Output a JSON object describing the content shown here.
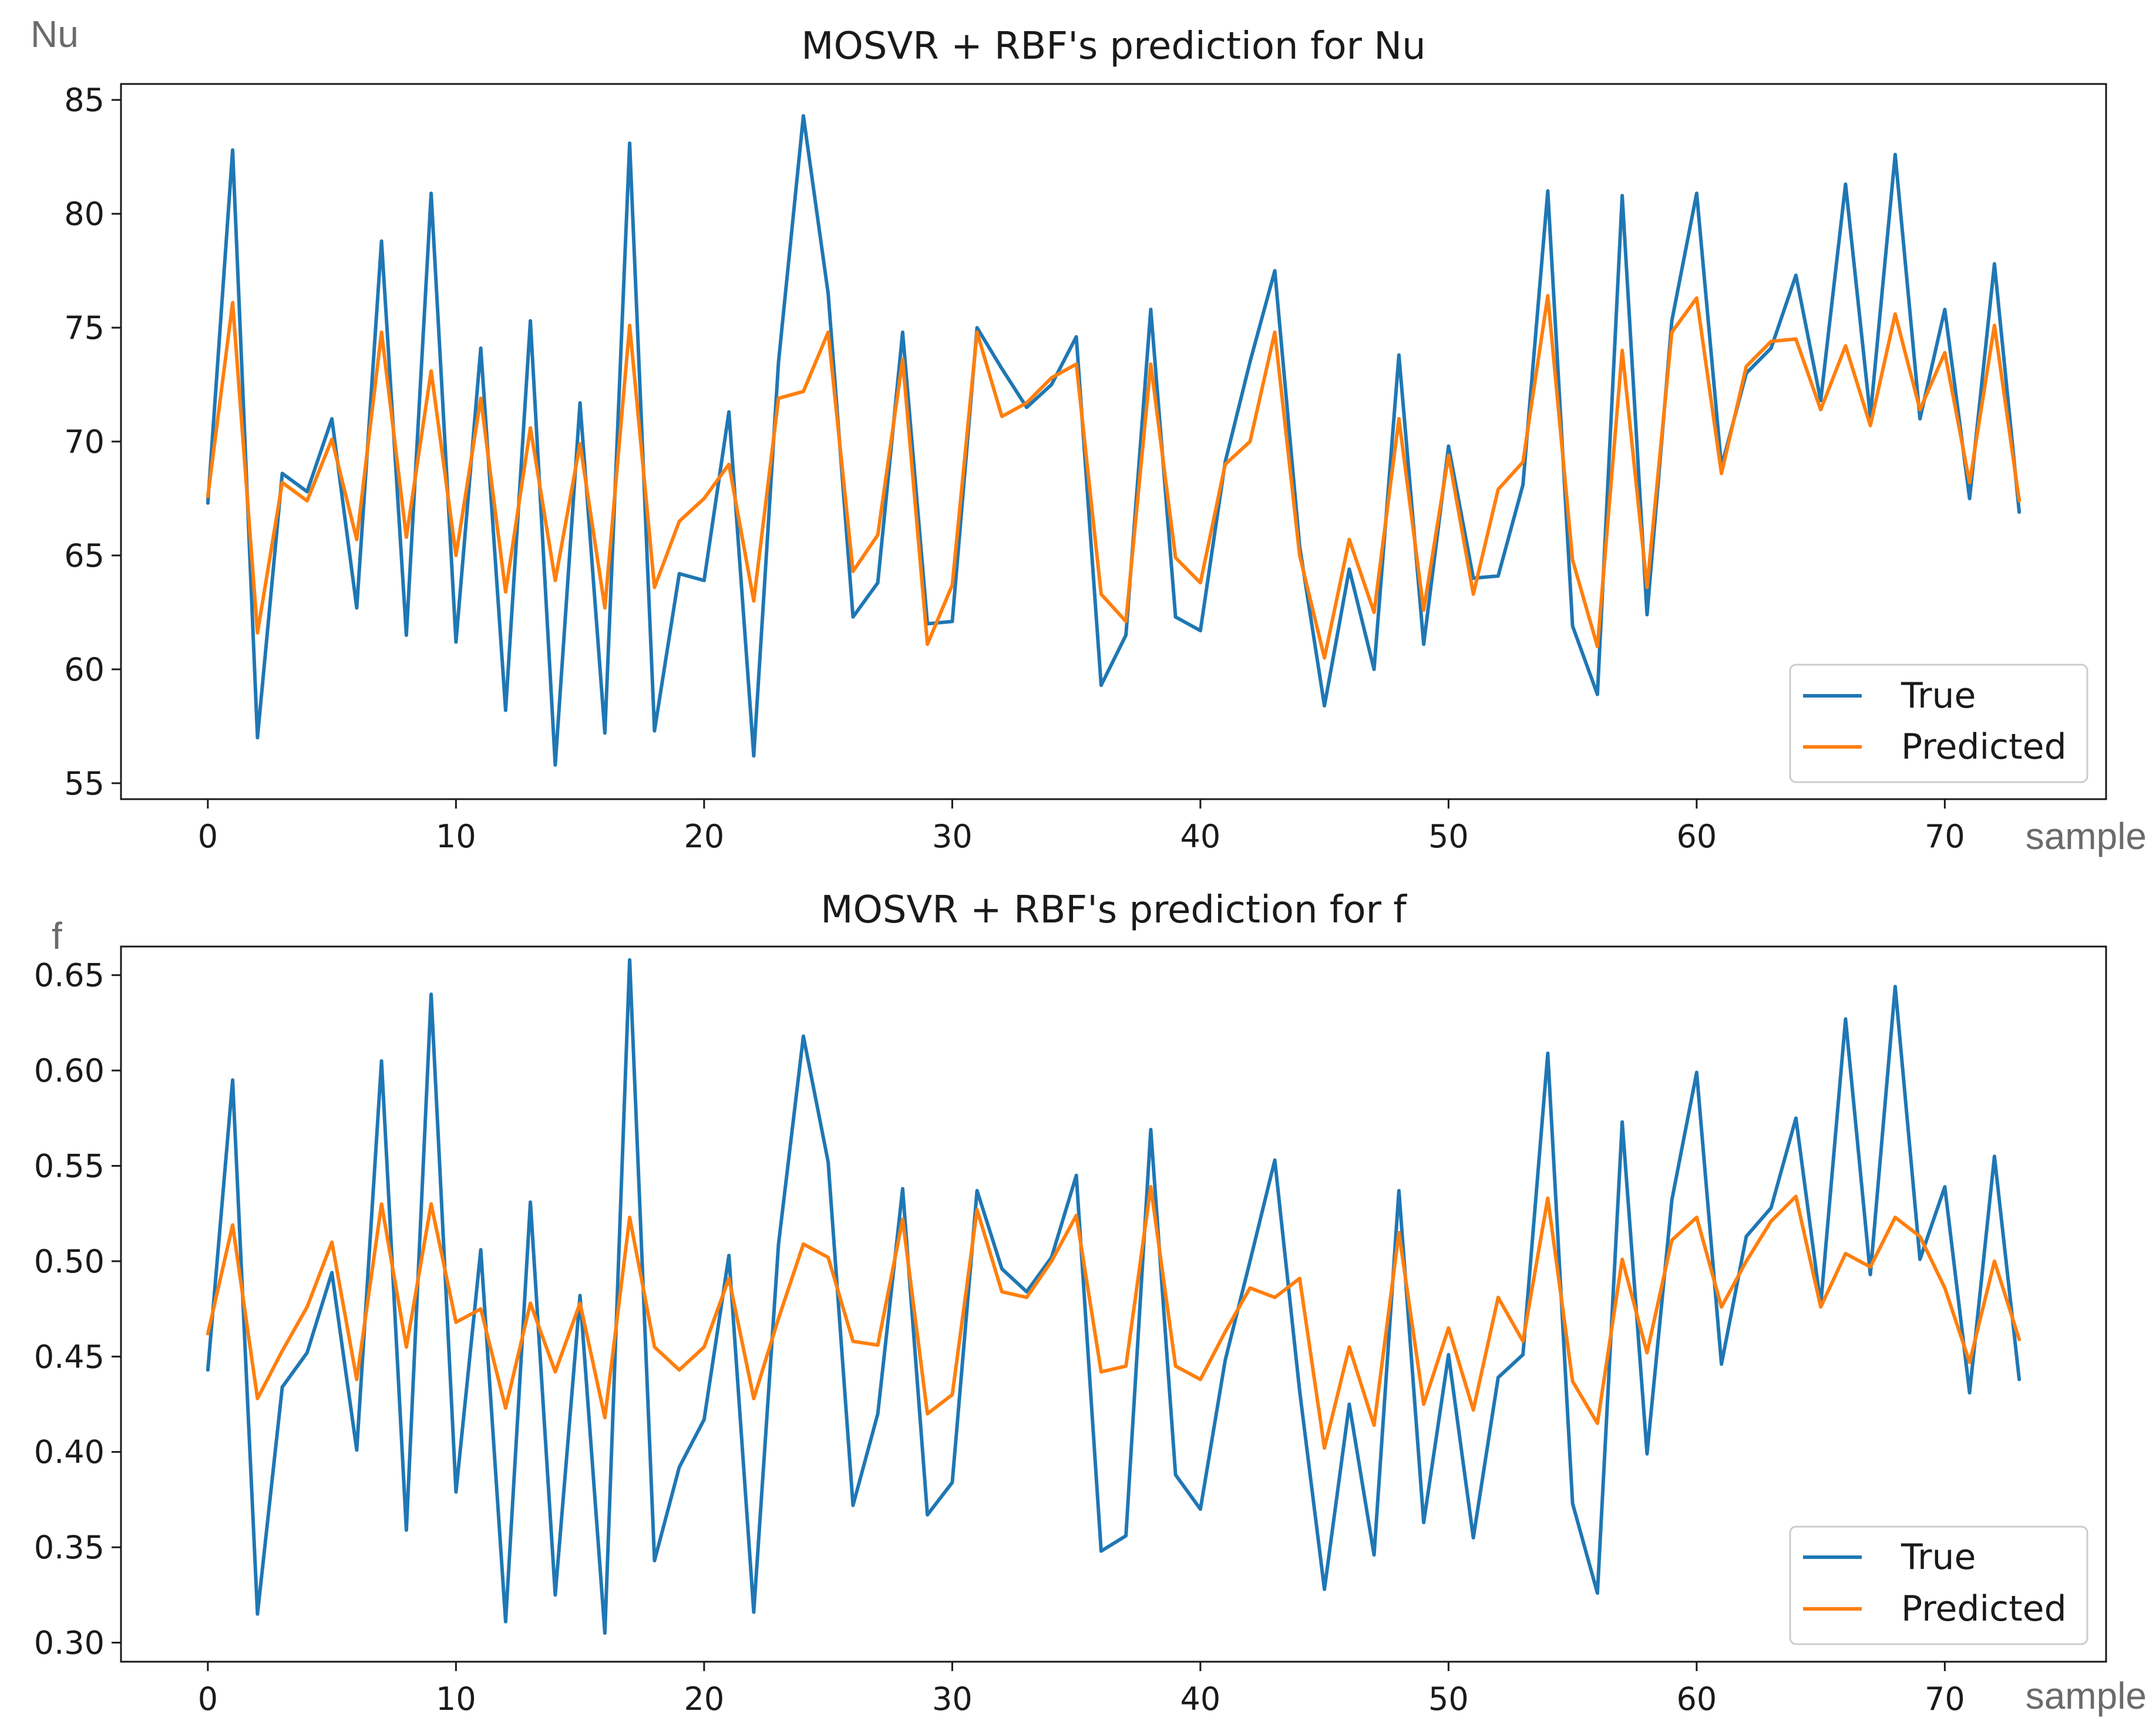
{
  "chart_data": [
    {
      "type": "line",
      "title": "MOSVR + RBF's prediction for Nu",
      "ylabel": "Nu",
      "xlabel": "sample",
      "xlim": [
        -3.5,
        76.5
      ],
      "ylim": [
        54.3,
        85.7
      ],
      "xticks": [
        0,
        10,
        20,
        30,
        40,
        50,
        60,
        70
      ],
      "yticks": [
        55,
        60,
        65,
        70,
        75,
        80,
        85
      ],
      "legend": "bottom-right",
      "series": [
        {
          "name": "True",
          "color": "#1f77b4",
          "values": [
            67.3,
            82.8,
            57.0,
            68.6,
            67.8,
            71.0,
            62.7,
            78.8,
            61.5,
            80.9,
            61.2,
            74.1,
            58.2,
            75.3,
            55.8,
            71.7,
            57.2,
            83.1,
            57.3,
            64.2,
            63.9,
            71.3,
            56.2,
            73.5,
            84.3,
            76.5,
            62.3,
            63.8,
            74.8,
            62.0,
            62.1,
            75.0,
            73.2,
            71.5,
            72.5,
            74.6,
            59.3,
            61.5,
            75.8,
            62.3,
            61.7,
            69.1,
            73.5,
            77.5,
            65.4,
            58.4,
            64.4,
            60.0,
            73.8,
            61.1,
            69.8,
            64.0,
            64.1,
            68.1,
            81.0,
            61.9,
            58.9,
            80.8,
            62.4,
            75.3,
            80.9,
            68.9,
            73.0,
            74.1,
            77.3,
            71.8,
            81.3,
            71.1,
            82.6,
            71.0,
            75.8,
            67.5,
            77.8,
            66.9
          ]
        },
        {
          "name": "Predicted",
          "color": "#ff7f0e",
          "values": [
            67.6,
            76.1,
            61.6,
            68.2,
            67.4,
            70.1,
            65.7,
            74.8,
            65.8,
            73.1,
            65.0,
            71.9,
            63.4,
            70.6,
            63.9,
            69.9,
            62.7,
            75.1,
            63.6,
            66.5,
            67.5,
            69.0,
            63.0,
            71.9,
            72.2,
            74.8,
            64.3,
            65.9,
            73.6,
            61.1,
            63.7,
            74.8,
            71.1,
            71.7,
            72.8,
            73.4,
            63.3,
            62.1,
            73.4,
            64.9,
            63.8,
            69.0,
            70.0,
            74.8,
            65.0,
            60.5,
            65.7,
            62.5,
            71.0,
            62.6,
            69.4,
            63.3,
            67.9,
            69.1,
            76.4,
            64.8,
            61.0,
            74.0,
            63.6,
            74.8,
            76.3,
            68.6,
            73.3,
            74.4,
            74.5,
            71.4,
            74.2,
            70.7,
            75.6,
            71.4,
            73.9,
            68.2,
            75.1,
            67.4
          ]
        }
      ]
    },
    {
      "type": "line",
      "title": "MOSVR + RBF's prediction for f",
      "ylabel": "f",
      "xlabel": "sample",
      "xlim": [
        -3.5,
        76.5
      ],
      "ylim": [
        0.29,
        0.665
      ],
      "xticks": [
        0,
        10,
        20,
        30,
        40,
        50,
        60,
        70
      ],
      "yticks": [
        0.3,
        0.35,
        0.4,
        0.45,
        0.5,
        0.55,
        0.6,
        0.65
      ],
      "legend": "bottom-right",
      "series": [
        {
          "name": "True",
          "color": "#1f77b4",
          "values": [
            0.443,
            0.595,
            0.315,
            0.434,
            0.452,
            0.494,
            0.401,
            0.605,
            0.359,
            0.64,
            0.379,
            0.506,
            0.311,
            0.531,
            0.325,
            0.482,
            0.305,
            0.658,
            0.343,
            0.392,
            0.417,
            0.503,
            0.316,
            0.509,
            0.618,
            0.552,
            0.372,
            0.42,
            0.538,
            0.367,
            0.384,
            0.537,
            0.496,
            0.484,
            0.502,
            0.545,
            0.348,
            0.356,
            0.569,
            0.388,
            0.37,
            0.448,
            0.5,
            0.553,
            0.432,
            0.328,
            0.425,
            0.346,
            0.537,
            0.363,
            0.451,
            0.355,
            0.439,
            0.451,
            0.609,
            0.373,
            0.326,
            0.573,
            0.399,
            0.532,
            0.599,
            0.446,
            0.513,
            0.528,
            0.575,
            0.477,
            0.627,
            0.493,
            0.644,
            0.501,
            0.539,
            0.431,
            0.555,
            0.438
          ]
        },
        {
          "name": "Predicted",
          "color": "#ff7f0e",
          "values": [
            0.462,
            0.519,
            0.428,
            0.453,
            0.476,
            0.51,
            0.438,
            0.53,
            0.455,
            0.53,
            0.468,
            0.475,
            0.423,
            0.478,
            0.442,
            0.478,
            0.418,
            0.523,
            0.455,
            0.443,
            0.455,
            0.491,
            0.428,
            0.47,
            0.509,
            0.502,
            0.458,
            0.456,
            0.522,
            0.42,
            0.43,
            0.527,
            0.484,
            0.481,
            0.5,
            0.524,
            0.442,
            0.445,
            0.539,
            0.445,
            0.438,
            0.463,
            0.486,
            0.481,
            0.491,
            0.402,
            0.455,
            0.414,
            0.515,
            0.425,
            0.465,
            0.422,
            0.481,
            0.458,
            0.533,
            0.437,
            0.415,
            0.501,
            0.452,
            0.511,
            0.523,
            0.476,
            0.5,
            0.521,
            0.534,
            0.476,
            0.504,
            0.497,
            0.523,
            0.513,
            0.486,
            0.447,
            0.5,
            0.459
          ]
        }
      ]
    }
  ]
}
